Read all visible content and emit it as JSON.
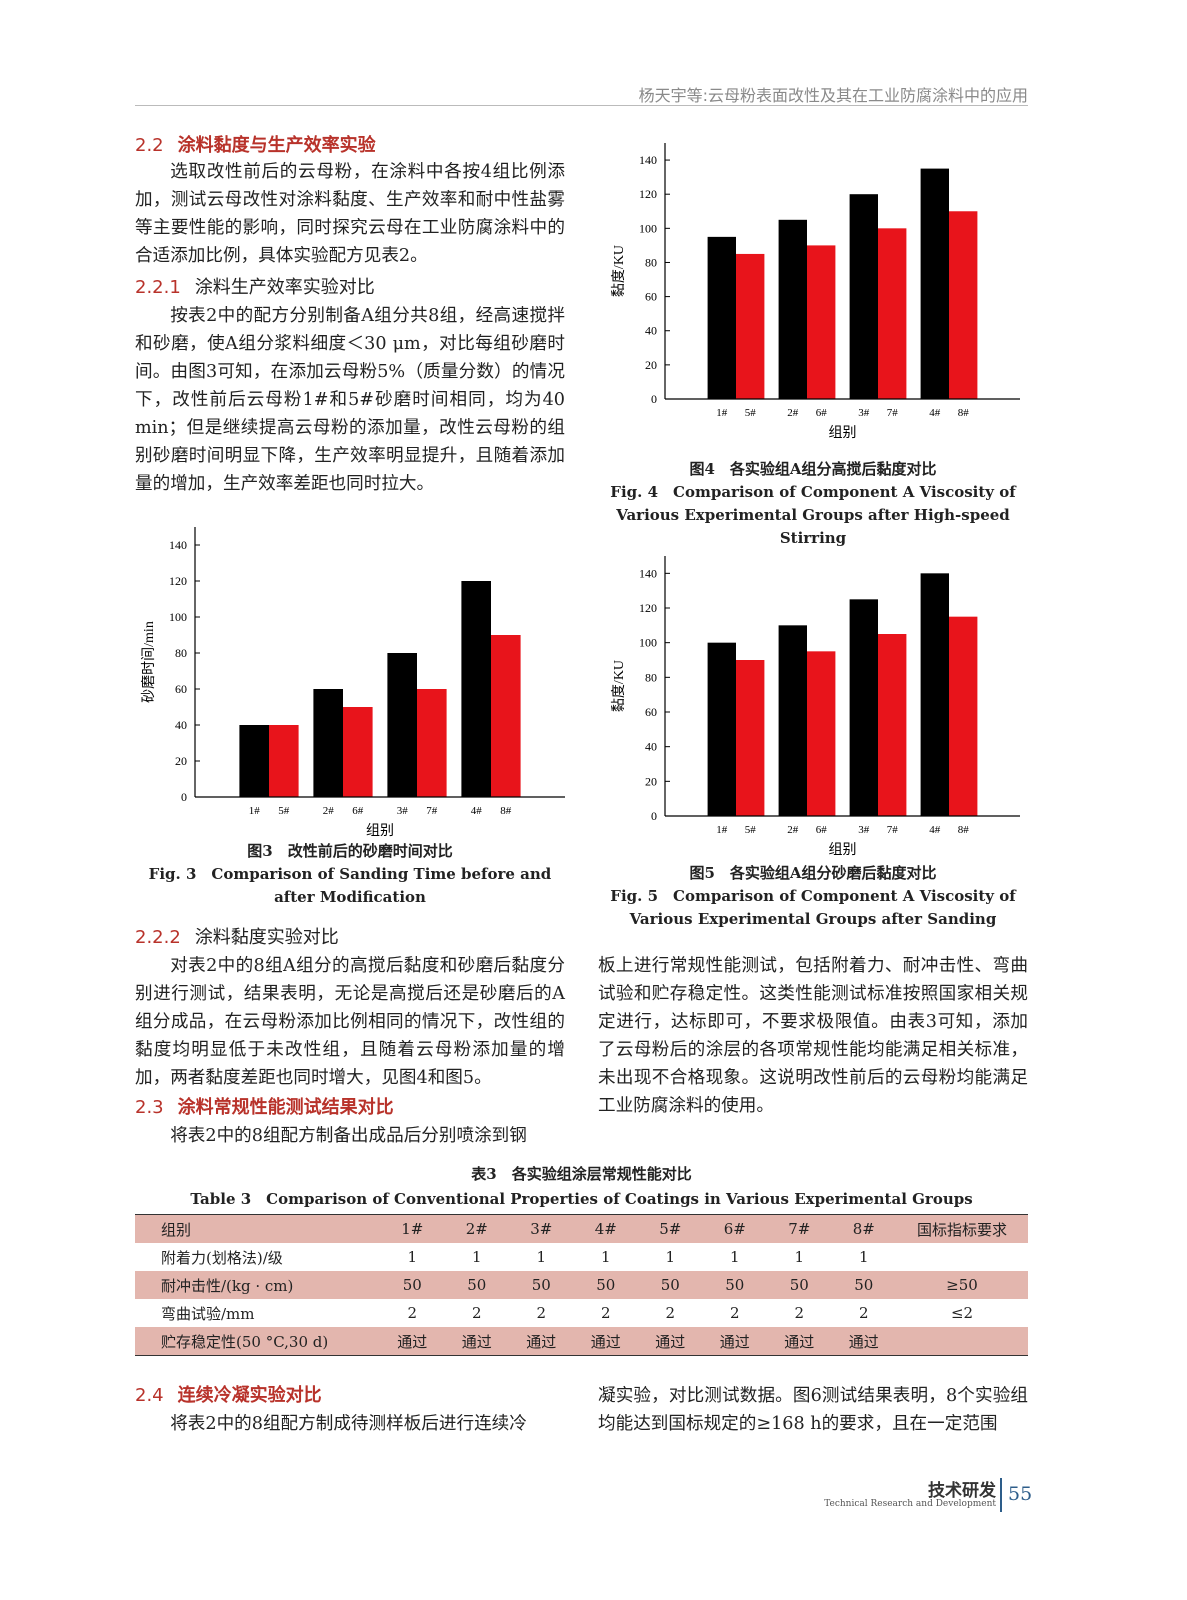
{
  "header": {
    "running_title": "杨天宇等:云母粉表面改性及其在工业防腐涂料中的应用"
  },
  "body": [
    {
      "number": "2.2",
      "title": "涂料黏度与生产效率实验"
    },
    "选取改性前后的云母粉，在涂料中各按4组比例添加，测试云母改性对涂料黏度、生产效率和耐中性盐雾等主要性能的影响，同时探究云母在工业防腐涂料中的合适添加比例，具体实验配方见表2。",
    {
      "number": "2.2.1",
      "title": "涂料生产效率实验对比"
    },
    "按表2中的配方分别制备A组分共8组，经高速搅拌和砂磨，使A组分浆料细度＜30 μm，对比每组砂磨时间。由图3可知，在添加云母粉5%（质量分数）的情况下，改性前后云母粉1#和5#砂磨时间相同，均为40 min；但是继续提高云母粉的添加量，改性云母粉的组别砂磨时间明显下降，生产效率明显提升，且随着添加量的增加，生产效率差距也同时拉大。",
    {
      "number": "2.2.2",
      "title": "涂料黏度实验对比"
    },
    "对表2中的8组A组分的高搅后黏度和砂磨后黏度分别进行测试，结果表明，无论是高搅后还是砂磨后的A组分成品，在云母粉添加比例相同的情况下，改性组的黏度均明显低于未改性组，且随着云母粉添加量的增加，两者黏度差距也同时增大，见图4和图5。",
    {
      "number": "2.3",
      "title": "涂料常规性能测试结果对比"
    },
    "将表2中的8组配方制备出成品后分别喷涂到钢",
    "板上进行常规性能测试，包括附着力、耐冲击性、弯曲试验和贮存稳定性。这类性能测试标准按照国家相关规定进行，达标即可，不要求极限值。由表3可知，添加了云母粉后的涂层的各项常规性能均能满足相关标准，未出现不合格现象。这说明改性前后的云母粉均能满足工业防腐涂料的使用。",
    {
      "number": "2.4",
      "title": "连续冷凝实验对比"
    },
    "将表2中的8组配方制成待测样板后进行连续冷",
    "凝实验，对比测试数据。图6测试结果表明，8个实验组均能达到国标规定的≥168 h的要求，且在一定范围"
  ],
  "chart_data": [
    {
      "type": "bar",
      "title": "图3　改性前后的砂磨时间对比",
      "subtitle": "Fig. 3　Comparison of Sanding Time before and after Modification",
      "x_label": "组别",
      "y_label": "砂磨时间/min",
      "ylim": [
        0,
        150
      ],
      "yticks": [
        0,
        20,
        40,
        60,
        80,
        100,
        120,
        140
      ],
      "series": [
        {
          "color": "#000000",
          "labels": [
            "1#",
            "2#",
            "3#",
            "4#"
          ],
          "values": [
            40,
            60,
            80,
            120
          ]
        },
        {
          "color": "#e8141b",
          "labels": [
            "5#",
            "6#",
            "7#",
            "8#"
          ],
          "values": [
            40,
            50,
            60,
            90
          ]
        }
      ]
    },
    {
      "type": "bar",
      "title": "图4　各实验组A组分高搅后黏度对比",
      "subtitle": "Fig. 4　Comparison of Component A Viscosity of Various Experimental Groups after High-speed Stirring",
      "x_label": "组别",
      "y_label": "黏度/KU",
      "ylim": [
        0,
        150
      ],
      "yticks": [
        0,
        20,
        40,
        60,
        80,
        100,
        120,
        140
      ],
      "series": [
        {
          "color": "#000000",
          "labels": [
            "1#",
            "2#",
            "3#",
            "4#"
          ],
          "values": [
            95,
            105,
            120,
            135
          ]
        },
        {
          "color": "#e8141b",
          "labels": [
            "5#",
            "6#",
            "7#",
            "8#"
          ],
          "values": [
            85,
            90,
            100,
            110
          ]
        }
      ]
    },
    {
      "type": "bar",
      "title": "图5　各实验组A组分砂磨后黏度对比",
      "subtitle": "Fig. 5　Comparison of Component A Viscosity of Various Experimental Groups after Sanding",
      "x_label": "组别",
      "y_label": "黏度/KU",
      "ylim": [
        0,
        150
      ],
      "yticks": [
        0,
        20,
        40,
        60,
        80,
        100,
        120,
        140
      ],
      "series": [
        {
          "color": "#000000",
          "labels": [
            "1#",
            "2#",
            "3#",
            "4#"
          ],
          "values": [
            100,
            110,
            125,
            140
          ]
        },
        {
          "color": "#e8141b",
          "labels": [
            "5#",
            "6#",
            "7#",
            "8#"
          ],
          "values": [
            90,
            95,
            105,
            115
          ]
        }
      ]
    }
  ],
  "table": {
    "title": "表3　各实验组涂层常规性能对比",
    "subtitle": "Table 3　Comparison of Conventional Properties of Coatings in Various Experimental Groups",
    "rows": [
      [
        "组别",
        "1#",
        "2#",
        "3#",
        "4#",
        "5#",
        "6#",
        "7#",
        "8#",
        "国标指标要求"
      ],
      [
        "附着力(划格法)/级",
        1,
        1,
        1,
        1,
        1,
        1,
        1,
        1
      ],
      [
        "耐冲击性/(kg · cm)",
        50,
        50,
        50,
        50,
        50,
        50,
        50,
        50,
        "≥50"
      ],
      [
        "弯曲试验/mm",
        2,
        2,
        2,
        2,
        2,
        2,
        2,
        2,
        "≤2"
      ],
      [
        "贮存稳定性(50 °C,30 d)",
        "通过",
        "通过",
        "通过",
        "通过",
        "通过",
        "通过",
        "通过",
        "通过"
      ]
    ]
  },
  "footer": {
    "section_cn": "技术研发",
    "section_en": "Technical Research and Development",
    "page": "55"
  }
}
